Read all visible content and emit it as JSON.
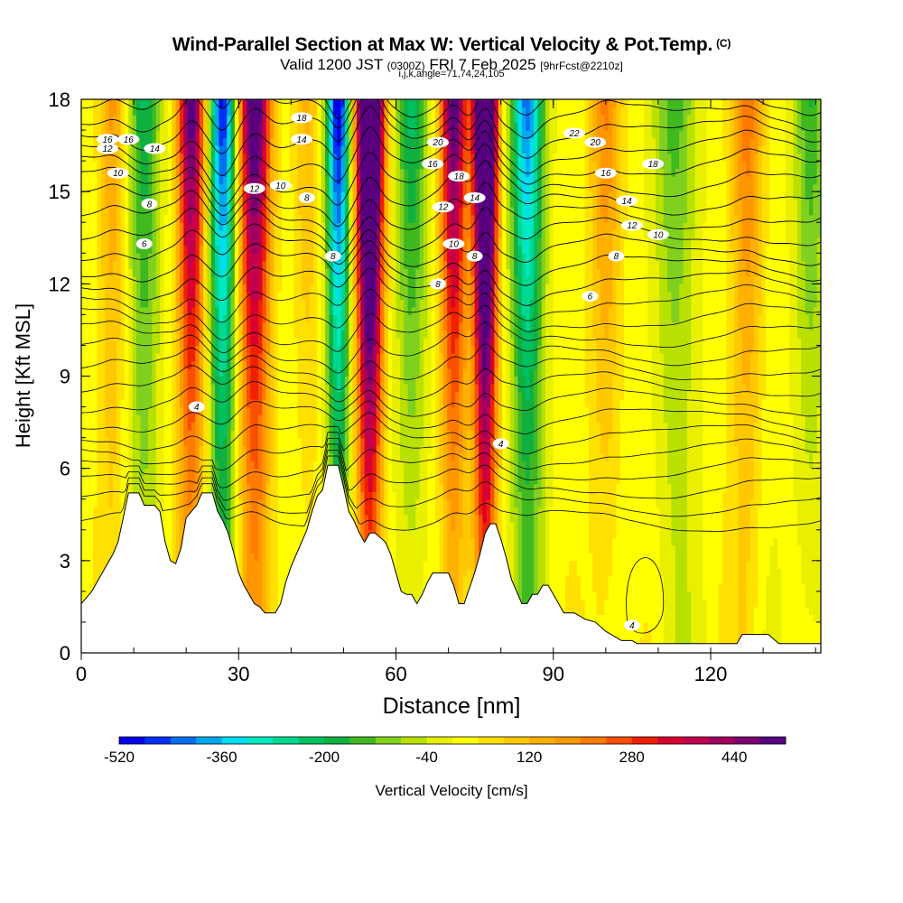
{
  "title": {
    "main": "Wind-Parallel Section at Max W: Vertical Velocity & Pot.Temp.",
    "corner": "(C)",
    "valid_prefix": "Valid 1200 JST",
    "valid_utc": "(0300Z)",
    "valid_date": "FRI 7 Feb 2025",
    "forecast": "[9hrFcst@2210z]",
    "indices": "i,j,k,angle=71,74,24,105"
  },
  "chart_data": {
    "type": "heatmap",
    "xlabel": "Distance [nm]",
    "ylabel": "Height [Kft MSL]",
    "xlim": [
      0,
      141
    ],
    "ylim": [
      0,
      18
    ],
    "x_ticks": [
      0,
      30,
      60,
      90,
      120
    ],
    "y_ticks": [
      0,
      3,
      6,
      9,
      12,
      15,
      18
    ],
    "fill_variable": "Vertical Velocity [cm/s]",
    "colorbar": {
      "label": "Vertical Velocity [cm/s]",
      "tick_labels": [
        "-520",
        "-360",
        "-200",
        "-40",
        "120",
        "280",
        "440"
      ],
      "levels": [
        -520,
        -480,
        -440,
        -400,
        -360,
        -320,
        -280,
        -240,
        -200,
        -160,
        -120,
        -80,
        -40,
        0,
        40,
        80,
        120,
        160,
        200,
        240,
        280,
        320,
        360,
        400,
        440,
        480
      ],
      "colors": [
        "#0000e8",
        "#0030f0",
        "#0070f0",
        "#00a8f0",
        "#00dcf0",
        "#00e8c0",
        "#00d890",
        "#00c060",
        "#10b040",
        "#40b820",
        "#80d020",
        "#b8e000",
        "#e8f000",
        "#ffff00",
        "#ffe000",
        "#ffc800",
        "#ffb000",
        "#ff9800",
        "#ff7c00",
        "#f85000",
        "#f02000",
        "#d80030",
        "#c00050",
        "#a00060",
        "#7c0070",
        "#580080"
      ]
    },
    "updraft_columns": [
      {
        "x": 6,
        "w": 160,
        "s": 2.5
      },
      {
        "x": 21,
        "w": 520,
        "s": 2.5
      },
      {
        "x": 33,
        "w": 560,
        "s": 3
      },
      {
        "x": 43,
        "w": 120,
        "s": 2.5
      },
      {
        "x": 55,
        "w": 900,
        "s": 2.5
      },
      {
        "x": 71,
        "w": 520,
        "s": 2.5
      },
      {
        "x": 77,
        "w": 900,
        "s": 2.2
      },
      {
        "x": 100,
        "w": 200,
        "s": 3
      },
      {
        "x": 127,
        "w": 220,
        "s": 3
      }
    ],
    "downdraft_columns": [
      {
        "x": 12,
        "w": -220,
        "s": 3
      },
      {
        "x": 27,
        "w": -520,
        "s": 2.5
      },
      {
        "x": 49,
        "w": -560,
        "s": 2.2
      },
      {
        "x": 63,
        "w": -240,
        "s": 3
      },
      {
        "x": 85,
        "w": -440,
        "s": 3
      },
      {
        "x": 113,
        "w": -160,
        "s": 4
      },
      {
        "x": 139,
        "w": -180,
        "s": 3
      }
    ],
    "theta_contour_labels": [
      {
        "x": 9,
        "y": 16.7,
        "text": "16"
      },
      {
        "x": 5,
        "y": 16.7,
        "text": "16"
      },
      {
        "x": 14,
        "y": 16.4,
        "text": "14"
      },
      {
        "x": 5,
        "y": 16.4,
        "text": "12"
      },
      {
        "x": 7,
        "y": 15.6,
        "text": "10"
      },
      {
        "x": 13,
        "y": 14.6,
        "text": "8"
      },
      {
        "x": 12,
        "y": 13.3,
        "text": "6"
      },
      {
        "x": 42,
        "y": 17.4,
        "text": "18"
      },
      {
        "x": 42,
        "y": 16.7,
        "text": "14"
      },
      {
        "x": 33,
        "y": 15.1,
        "text": "12"
      },
      {
        "x": 38,
        "y": 15.2,
        "text": "10"
      },
      {
        "x": 43,
        "y": 14.8,
        "text": "8"
      },
      {
        "x": 48,
        "y": 12.9,
        "text": "8"
      },
      {
        "x": 68,
        "y": 16.6,
        "text": "20"
      },
      {
        "x": 67,
        "y": 15.9,
        "text": "16"
      },
      {
        "x": 72,
        "y": 15.5,
        "text": "18"
      },
      {
        "x": 75,
        "y": 14.8,
        "text": "14"
      },
      {
        "x": 69,
        "y": 14.5,
        "text": "12"
      },
      {
        "x": 71,
        "y": 13.3,
        "text": "10"
      },
      {
        "x": 75,
        "y": 12.9,
        "text": "8"
      },
      {
        "x": 68,
        "y": 12.0,
        "text": "8"
      },
      {
        "x": 94,
        "y": 16.9,
        "text": "22"
      },
      {
        "x": 98,
        "y": 16.6,
        "text": "20"
      },
      {
        "x": 100,
        "y": 15.6,
        "text": "16"
      },
      {
        "x": 109,
        "y": 15.9,
        "text": "18"
      },
      {
        "x": 104,
        "y": 14.7,
        "text": "14"
      },
      {
        "x": 105,
        "y": 13.9,
        "text": "12"
      },
      {
        "x": 110,
        "y": 13.6,
        "text": "10"
      },
      {
        "x": 102,
        "y": 12.9,
        "text": "8"
      },
      {
        "x": 97,
        "y": 11.6,
        "text": "6"
      },
      {
        "x": 22,
        "y": 8.0,
        "text": "4"
      },
      {
        "x": 80,
        "y": 6.8,
        "text": "4"
      },
      {
        "x": 105,
        "y": 0.9,
        "text": "4"
      }
    ],
    "terrain_profile": [
      [
        0,
        1.6
      ],
      [
        2,
        2.0
      ],
      [
        3,
        2.3
      ],
      [
        4,
        2.6
      ],
      [
        5,
        2.9
      ],
      [
        6,
        3.2
      ],
      [
        7,
        3.6
      ],
      [
        8,
        4.4
      ],
      [
        8.5,
        4.8
      ],
      [
        9,
        5.2
      ],
      [
        10,
        5.2
      ],
      [
        11,
        5.2
      ],
      [
        12,
        4.8
      ],
      [
        13,
        4.8
      ],
      [
        14,
        4.8
      ],
      [
        15,
        4.6
      ],
      [
        16,
        3.6
      ],
      [
        17,
        3.0
      ],
      [
        18,
        2.9
      ],
      [
        19,
        3.4
      ],
      [
        20,
        4.4
      ],
      [
        21,
        4.6
      ],
      [
        22,
        4.8
      ],
      [
        23,
        5.2
      ],
      [
        24,
        5.2
      ],
      [
        25,
        5.2
      ],
      [
        26,
        4.6
      ],
      [
        27,
        4.3
      ],
      [
        28,
        3.9
      ],
      [
        29,
        3.3
      ],
      [
        30,
        2.6
      ],
      [
        31,
        2.2
      ],
      [
        32,
        1.9
      ],
      [
        33,
        1.6
      ],
      [
        34,
        1.5
      ],
      [
        35,
        1.3
      ],
      [
        37,
        1.3
      ],
      [
        38,
        1.6
      ],
      [
        39,
        2.3
      ],
      [
        40,
        2.8
      ],
      [
        41,
        3.2
      ],
      [
        42,
        3.6
      ],
      [
        43,
        4.0
      ],
      [
        44,
        4.6
      ],
      [
        45,
        5.1
      ],
      [
        46,
        5.3
      ],
      [
        47,
        6.1
      ],
      [
        49,
        6.1
      ],
      [
        50,
        5.4
      ],
      [
        51,
        4.6
      ],
      [
        52,
        4.3
      ],
      [
        53,
        3.9
      ],
      [
        54,
        3.6
      ],
      [
        55,
        3.9
      ],
      [
        56,
        3.9
      ],
      [
        58,
        3.6
      ],
      [
        59,
        3.2
      ],
      [
        60,
        2.6
      ],
      [
        61,
        2.0
      ],
      [
        62,
        1.9
      ],
      [
        63,
        1.9
      ],
      [
        64,
        1.6
      ],
      [
        65,
        1.9
      ],
      [
        66,
        2.3
      ],
      [
        67,
        2.6
      ],
      [
        68,
        2.6
      ],
      [
        70,
        2.6
      ],
      [
        71,
        2.2
      ],
      [
        72,
        1.6
      ],
      [
        73,
        1.6
      ],
      [
        74,
        2.1
      ],
      [
        75,
        2.6
      ],
      [
        76,
        3.2
      ],
      [
        77,
        3.9
      ],
      [
        78,
        4.2
      ],
      [
        79,
        4.2
      ],
      [
        80,
        3.7
      ],
      [
        81,
        3.1
      ],
      [
        82,
        2.4
      ],
      [
        83,
        2.0
      ],
      [
        84,
        1.6
      ],
      [
        85,
        1.6
      ],
      [
        86,
        1.9
      ],
      [
        87,
        1.9
      ],
      [
        88,
        2.2
      ],
      [
        89,
        2.2
      ],
      [
        90,
        1.9
      ],
      [
        91,
        1.6
      ],
      [
        92,
        1.3
      ],
      [
        94,
        1.3
      ],
      [
        96,
        1.1
      ],
      [
        98,
        1.0
      ],
      [
        100,
        0.7
      ],
      [
        103,
        0.4
      ],
      [
        105,
        0.4
      ],
      [
        106,
        0.3
      ],
      [
        110,
        0.3
      ],
      [
        113,
        0.3
      ],
      [
        125,
        0.3
      ],
      [
        126,
        0.6
      ],
      [
        128,
        0.6
      ],
      [
        131,
        0.6
      ],
      [
        133,
        0.3
      ],
      [
        141,
        0.3
      ]
    ]
  }
}
